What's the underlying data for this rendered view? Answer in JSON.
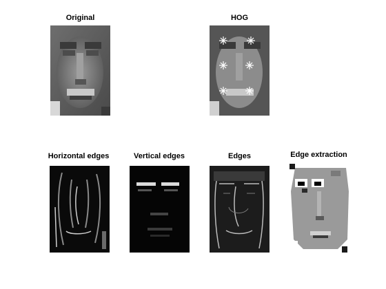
{
  "panels": {
    "original": {
      "title": "Original"
    },
    "hog": {
      "title": "HOG"
    },
    "horizontal": {
      "title": "Horizontal edges"
    },
    "vertical": {
      "title": "Vertical edges"
    },
    "edges": {
      "title": "Edges"
    },
    "extraction": {
      "title": "Edge extraction"
    }
  }
}
